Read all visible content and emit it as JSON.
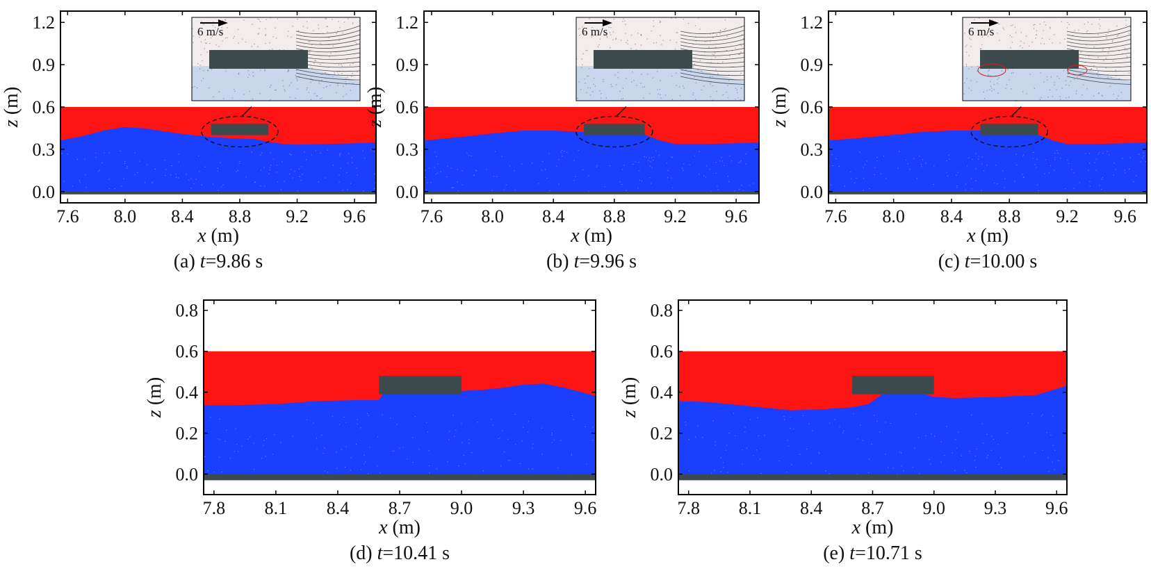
{
  "colors": {
    "air": "#ff1414",
    "water": "#1a3fff",
    "structure": "#3d4b4f",
    "frame": "#000000",
    "inset_bg": "#f2ecec",
    "inset_water": "#c9d6ec"
  },
  "chart_data": [
    {
      "type": "area",
      "panel": "a",
      "caption": {
        "prefix": "(a) ",
        "var": "t",
        "value": "=9.86 s"
      },
      "xlabel": "x",
      "xunit": " (m)",
      "ylabel": "z",
      "yunit": " (m)",
      "xlim": [
        7.55,
        9.75
      ],
      "ylim": [
        -0.08,
        1.28
      ],
      "xticks": [
        "7.6",
        "8.0",
        "8.4",
        "8.8",
        "9.2",
        "9.6"
      ],
      "yticks": [
        "0.0",
        "0.3",
        "0.6",
        "0.9",
        "1.2"
      ],
      "air_top": 0.6,
      "bed": [
        -0.02,
        0.0
      ],
      "body": {
        "x": [
          8.6,
          9.0
        ],
        "z": [
          0.4,
          0.48
        ]
      },
      "surface": {
        "x": [
          7.55,
          7.7,
          7.85,
          8.0,
          8.15,
          8.3,
          8.45,
          8.6,
          8.75,
          8.9,
          9.0,
          9.1,
          9.2,
          9.4,
          9.6,
          9.75
        ],
        "z": [
          0.36,
          0.39,
          0.43,
          0.455,
          0.445,
          0.42,
          0.4,
          0.385,
          0.375,
          0.37,
          0.35,
          0.335,
          0.33,
          0.335,
          0.34,
          0.345
        ]
      },
      "inset": {
        "label": "6 m/s",
        "has_ellipse": true,
        "red_circles": false
      }
    },
    {
      "type": "area",
      "panel": "b",
      "caption": {
        "prefix": "(b) ",
        "var": "t",
        "value": "=9.96 s"
      },
      "xlabel": "x",
      "xunit": " (m)",
      "ylabel": "z",
      "yunit": " (m)",
      "xlim": [
        7.55,
        9.75
      ],
      "ylim": [
        -0.08,
        1.28
      ],
      "xticks": [
        "7.6",
        "8.0",
        "8.4",
        "8.8",
        "9.2",
        "9.6"
      ],
      "yticks": [
        "0.0",
        "0.3",
        "0.6",
        "0.9",
        "1.2"
      ],
      "air_top": 0.6,
      "bed": [
        -0.02,
        0.0
      ],
      "body": {
        "x": [
          8.6,
          9.0
        ],
        "z": [
          0.4,
          0.48
        ]
      },
      "surface": {
        "x": [
          7.55,
          7.8,
          8.0,
          8.2,
          8.4,
          8.6,
          8.8,
          9.0,
          9.1,
          9.2,
          9.4,
          9.6,
          9.75
        ],
        "z": [
          0.36,
          0.385,
          0.41,
          0.43,
          0.43,
          0.42,
          0.4,
          0.4,
          0.36,
          0.335,
          0.335,
          0.34,
          0.345
        ]
      },
      "inset": {
        "label": "6 m/s",
        "has_ellipse": true,
        "red_circles": false
      }
    },
    {
      "type": "area",
      "panel": "c",
      "caption": {
        "prefix": "(c) ",
        "var": "t",
        "value": "=10.00 s"
      },
      "xlabel": "x",
      "xunit": " (m)",
      "ylabel": "z",
      "yunit": " (m)",
      "xlim": [
        7.55,
        9.75
      ],
      "ylim": [
        -0.08,
        1.28
      ],
      "xticks": [
        "7.6",
        "8.0",
        "8.4",
        "8.8",
        "9.2",
        "9.6"
      ],
      "yticks": [
        "0.0",
        "0.3",
        "0.6",
        "0.9",
        "1.2"
      ],
      "air_top": 0.6,
      "bed": [
        -0.02,
        0.0
      ],
      "body": {
        "x": [
          8.6,
          9.0
        ],
        "z": [
          0.4,
          0.48
        ]
      },
      "surface": {
        "x": [
          7.55,
          7.8,
          8.0,
          8.2,
          8.4,
          8.6,
          8.8,
          9.0,
          9.1,
          9.2,
          9.4,
          9.6,
          9.75
        ],
        "z": [
          0.36,
          0.38,
          0.4,
          0.42,
          0.43,
          0.43,
          0.42,
          0.4,
          0.36,
          0.335,
          0.335,
          0.34,
          0.345
        ]
      },
      "inset": {
        "label": "6 m/s",
        "has_ellipse": true,
        "red_circles": true
      }
    },
    {
      "type": "area",
      "panel": "d",
      "caption": {
        "prefix": "(d) ",
        "var": "t",
        "value": "=10.41 s"
      },
      "xlabel": "x",
      "xunit": " (m)",
      "ylabel": "z",
      "yunit": " (m)",
      "xlim": [
        7.75,
        9.65
      ],
      "ylim": [
        -0.1,
        0.85
      ],
      "xticks": [
        "7.8",
        "8.1",
        "8.4",
        "8.7",
        "9.0",
        "9.3",
        "9.6"
      ],
      "yticks": [
        "0.0",
        "0.2",
        "0.4",
        "0.6",
        "0.8"
      ],
      "air_top": 0.6,
      "bed": [
        -0.03,
        0.0
      ],
      "body": {
        "x": [
          8.6,
          9.0
        ],
        "z": [
          0.39,
          0.48
        ]
      },
      "surface": {
        "x": [
          7.75,
          7.9,
          8.1,
          8.3,
          8.5,
          8.6,
          8.62,
          8.65,
          8.8,
          9.0,
          9.1,
          9.2,
          9.3,
          9.4,
          9.5,
          9.65
        ],
        "z": [
          0.335,
          0.335,
          0.34,
          0.355,
          0.36,
          0.36,
          0.39,
          0.395,
          0.4,
          0.405,
          0.41,
          0.42,
          0.435,
          0.44,
          0.42,
          0.38
        ]
      },
      "inset": null
    },
    {
      "type": "area",
      "panel": "e",
      "caption": {
        "prefix": "(e) ",
        "var": "t",
        "value": "=10.71 s"
      },
      "xlabel": "x",
      "xunit": " (m)",
      "ylabel": "z",
      "yunit": " (m)",
      "xlim": [
        7.75,
        9.65
      ],
      "ylim": [
        -0.1,
        0.85
      ],
      "xticks": [
        "7.8",
        "8.1",
        "8.4",
        "8.7",
        "9.0",
        "9.3",
        "9.6"
      ],
      "yticks": [
        "0.0",
        "0.2",
        "0.4",
        "0.6",
        "0.8"
      ],
      "air_top": 0.6,
      "bed": [
        -0.03,
        0.0
      ],
      "body": {
        "x": [
          8.6,
          9.0
        ],
        "z": [
          0.39,
          0.48
        ]
      },
      "surface": {
        "x": [
          7.75,
          7.9,
          8.1,
          8.3,
          8.45,
          8.6,
          8.68,
          8.75,
          8.85,
          8.95,
          9.0,
          9.1,
          9.3,
          9.5,
          9.65
        ],
        "z": [
          0.355,
          0.35,
          0.33,
          0.31,
          0.315,
          0.325,
          0.34,
          0.39,
          0.395,
          0.39,
          0.375,
          0.37,
          0.375,
          0.385,
          0.43
        ]
      },
      "inset": null
    }
  ]
}
